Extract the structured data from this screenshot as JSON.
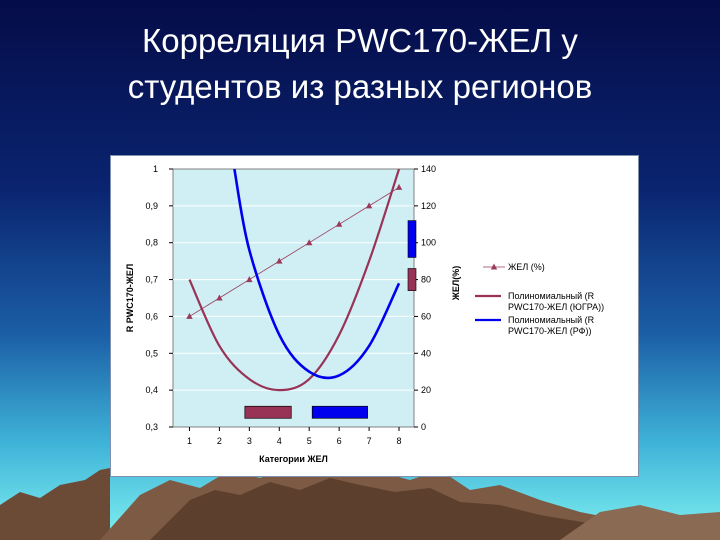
{
  "slide": {
    "title_line1": "Корреляция PWC170-ЖЕЛ у",
    "title_line2": "студентов из разных регионов"
  },
  "colors": {
    "background_top": "#06104f",
    "background_mid": "#1b5fa6",
    "background_glow": "#5fe0e8",
    "plot_area": "#cfeff4",
    "series_zhel": "#9b3a5a",
    "series_poly_yugra": "#993355",
    "series_poly_rf": "#0000ee"
  },
  "chart_data": {
    "type": "line",
    "xlabel": "Категории ЖЕЛ",
    "ylabel_left": "R PWC170-ЖЕЛ",
    "ylabel_right": "ЖЕЛ(%)",
    "x": [
      1,
      2,
      3,
      4,
      5,
      6,
      7,
      8
    ],
    "x_ticks": [
      "1",
      "2",
      "3",
      "4",
      "5",
      "6",
      "7",
      "8"
    ],
    "ylim_left": [
      0.3,
      1
    ],
    "y_ticks_left": [
      "0,3",
      "0,4",
      "0,5",
      "0,6",
      "0,7",
      "0,8",
      "0,9",
      "1"
    ],
    "ylim_right": [
      0,
      140
    ],
    "y_ticks_right": [
      "0",
      "20",
      "40",
      "60",
      "80",
      "100",
      "120",
      "140"
    ],
    "grid": true,
    "legend_position": "right",
    "series": [
      {
        "name": "ЖЕЛ (%)",
        "axis": "right",
        "marker": "triangle",
        "x": [
          1,
          2,
          3,
          4,
          5,
          6,
          7,
          8
        ],
        "values": [
          60,
          70,
          80,
          90,
          100,
          110,
          120,
          130
        ]
      },
      {
        "name": "Полиномиальный (R PWC170-ЖЕЛ (ЮГРА))",
        "axis": "left",
        "x": [
          1,
          2,
          3,
          4,
          5,
          6,
          7,
          8
        ],
        "values": [
          0.7,
          0.52,
          0.43,
          0.4,
          0.43,
          0.55,
          0.75,
          1.0
        ]
      },
      {
        "name": "Полиномиальный (R PWC170-ЖЕЛ (РФ))",
        "axis": "left",
        "x": [
          2.5,
          3,
          4,
          5,
          6,
          7,
          8
        ],
        "values": [
          1.0,
          0.78,
          0.55,
          0.45,
          0.44,
          0.52,
          0.69
        ]
      }
    ],
    "range_bars": [
      {
        "x_from": 2.85,
        "x_to": 4.4,
        "y": 0.34,
        "axis": "left",
        "color": "#993355"
      },
      {
        "x_from": 5.1,
        "x_to": 6.95,
        "y": 0.34,
        "axis": "left",
        "color": "#0000ee"
      }
    ]
  }
}
